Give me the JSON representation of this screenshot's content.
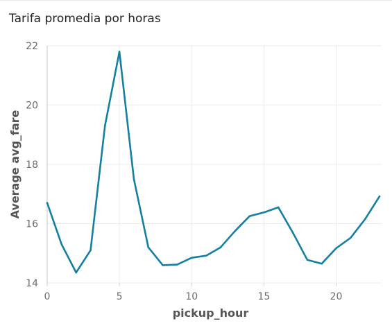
{
  "title": "Tarifa promedia por horas",
  "colors": {
    "line": "#1380a1",
    "grid": "#ebebeb",
    "axis": "#d0d0d0"
  },
  "chart_data": {
    "type": "line",
    "title": "Tarifa promedia por horas",
    "xlabel": "pickup_hour",
    "ylabel": "Average avg_fare",
    "xlim": [
      0,
      23
    ],
    "ylim": [
      14,
      22
    ],
    "x_ticks": [
      0,
      5,
      10,
      15,
      20
    ],
    "y_ticks": [
      14,
      16,
      18,
      20,
      22
    ],
    "grid": true,
    "series": [
      {
        "x": [
          0,
          1,
          2,
          3,
          4,
          5,
          6,
          7,
          8,
          9,
          10,
          11,
          12,
          13,
          14,
          15,
          16,
          17,
          18,
          19,
          20,
          21,
          22,
          23
        ],
        "values": [
          16.7,
          15.3,
          14.35,
          15.1,
          19.3,
          21.8,
          17.5,
          15.2,
          14.6,
          14.62,
          14.85,
          14.92,
          15.2,
          15.75,
          16.25,
          16.38,
          16.55,
          15.7,
          14.78,
          14.65,
          15.17,
          15.52,
          16.15,
          16.92
        ]
      }
    ]
  }
}
